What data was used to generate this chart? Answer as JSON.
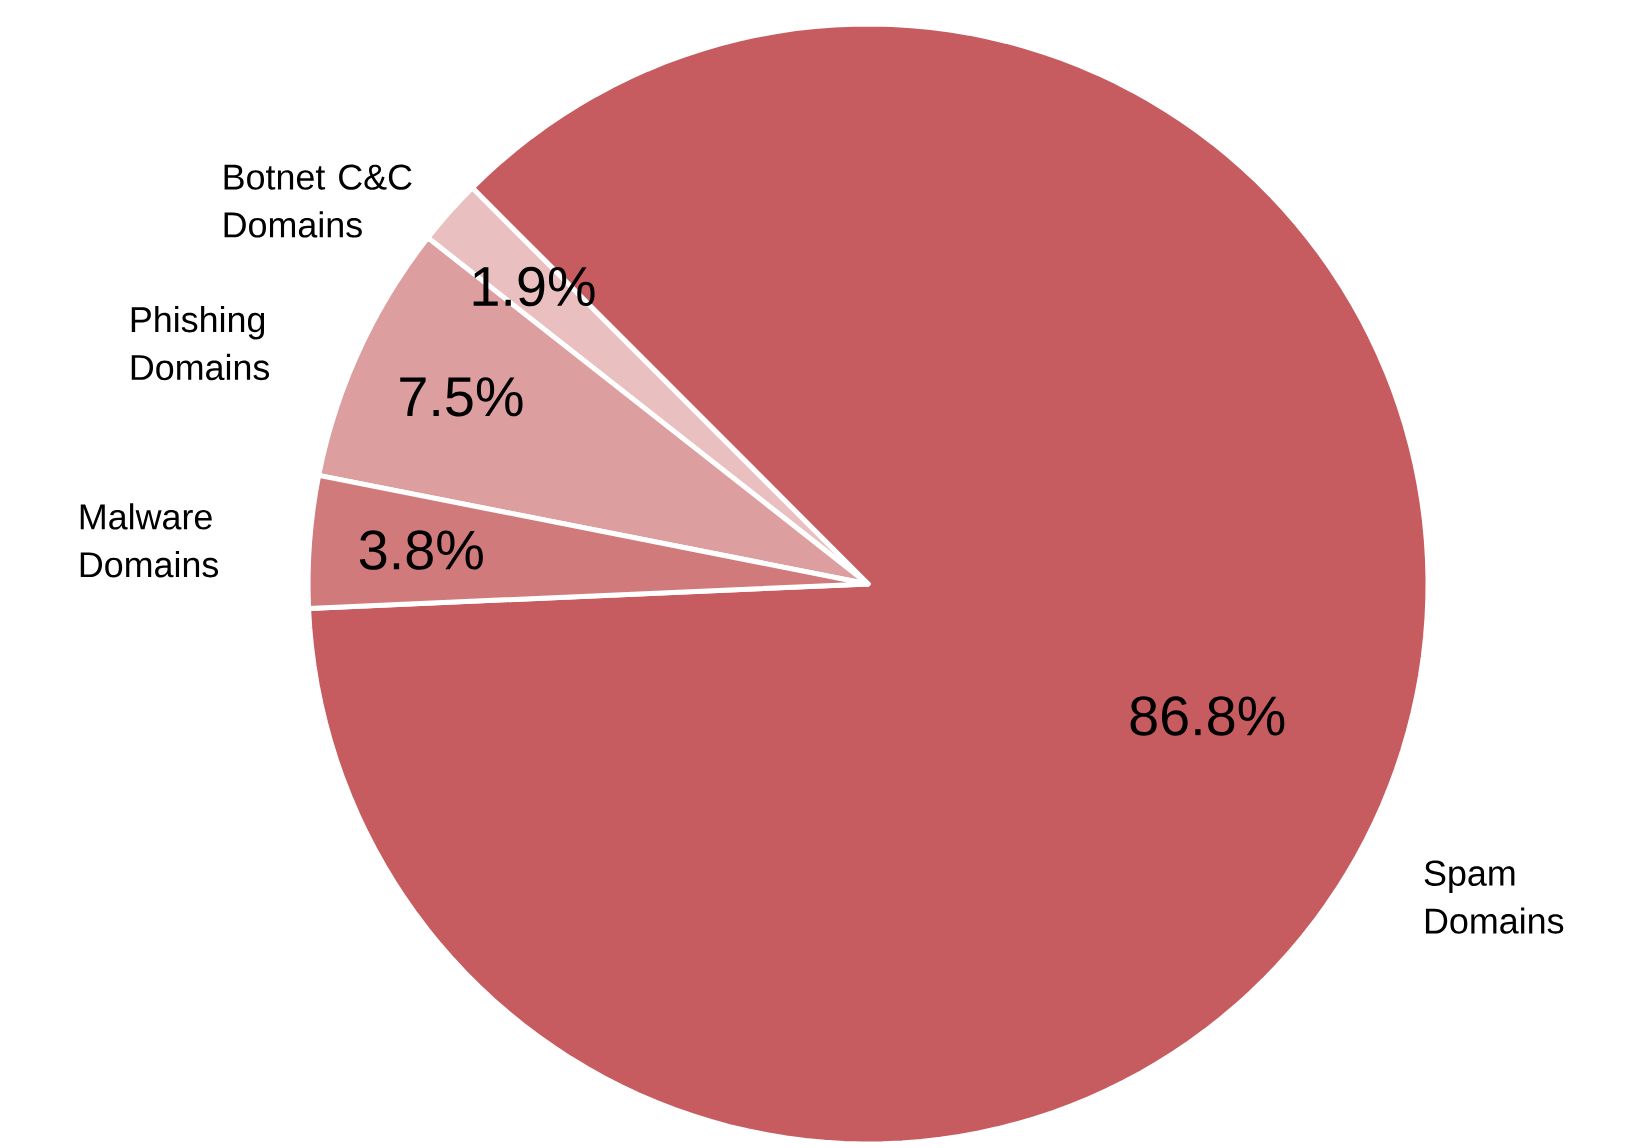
{
  "chart_data": {
    "type": "pie",
    "categories": [
      "Spam Domains",
      "Botnet C&C Domains",
      "Phishing Domains",
      "Malware Domains"
    ],
    "values": [
      86.8,
      1.9,
      7.5,
      3.8
    ],
    "colors": [
      "#c75c60",
      "#e9bfc0",
      "#dc9e9f",
      "#d17a7c"
    ],
    "data_labels": true,
    "value_labels": [
      "86.8%",
      "1.9%",
      "7.5%",
      "3.8%"
    ]
  }
}
